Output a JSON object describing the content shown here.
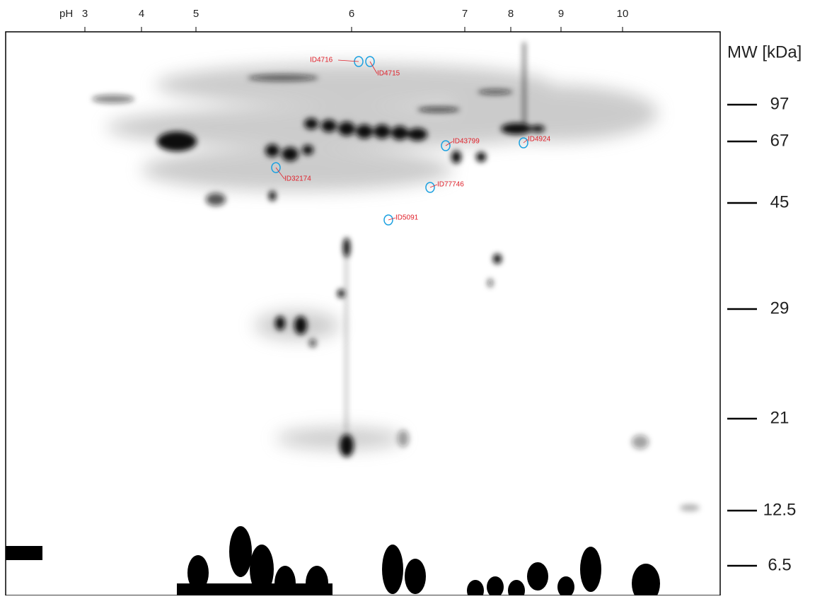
{
  "ph_axis": {
    "label": "pH",
    "ticks": [
      "3",
      "4",
      "5",
      "6",
      "7",
      "8",
      "9",
      "10"
    ]
  },
  "mw_axis": {
    "title": "MW [kDa]",
    "ticks": [
      "97",
      "67",
      "45",
      "29",
      "21",
      "12.5",
      "6.5"
    ]
  },
  "spots": [
    "ID4716",
    "ID4715",
    "ID43799",
    "ID4924",
    "ID32174",
    "ID77746",
    "ID5091"
  ]
}
